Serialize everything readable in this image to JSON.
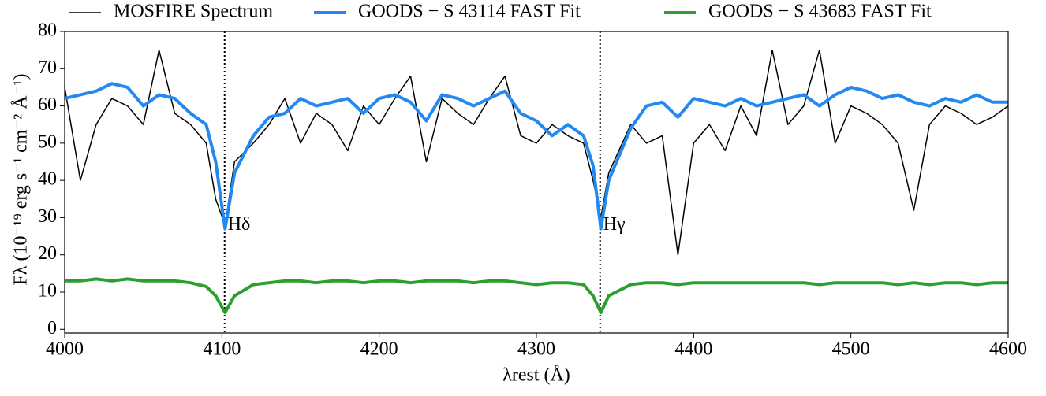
{
  "chart_data": {
    "type": "line",
    "xlabel": "λrest (Å)",
    "ylabel": "Fλ (10⁻¹⁹ erg s⁻¹ cm⁻² Å⁻¹)",
    "x": [
      4000,
      4010,
      4020,
      4030,
      4040,
      4050,
      4060,
      4070,
      4080,
      4090,
      4096,
      4102,
      4108,
      4120,
      4130,
      4140,
      4150,
      4160,
      4170,
      4180,
      4190,
      4200,
      4210,
      4220,
      4230,
      4240,
      4250,
      4260,
      4270,
      4280,
      4290,
      4300,
      4310,
      4320,
      4330,
      4336,
      4341,
      4346,
      4360,
      4370,
      4380,
      4390,
      4400,
      4410,
      4420,
      4430,
      4440,
      4450,
      4460,
      4470,
      4480,
      4490,
      4500,
      4510,
      4520,
      4530,
      4540,
      4550,
      4560,
      4570,
      4580,
      4590,
      4600
    ],
    "series": [
      {
        "name": "MOSFIRE Spectrum",
        "color": "#000000",
        "width": 1.5,
        "values": [
          65,
          40,
          55,
          62,
          60,
          55,
          75,
          58,
          55,
          50,
          35,
          28,
          45,
          50,
          55,
          62,
          50,
          58,
          55,
          48,
          60,
          55,
          62,
          68,
          45,
          62,
          58,
          55,
          62,
          68,
          52,
          50,
          55,
          52,
          50,
          40,
          30,
          42,
          55,
          50,
          52,
          20,
          50,
          55,
          48,
          60,
          52,
          75,
          55,
          60,
          75,
          50,
          60,
          58,
          55,
          50,
          32,
          55,
          60,
          58,
          55,
          57,
          60
        ]
      },
      {
        "name": "GOODS − S 43114 FAST Fit",
        "color": "#2389f0",
        "width": 4,
        "values": [
          62,
          63,
          64,
          66,
          65,
          60,
          63,
          62,
          58,
          55,
          45,
          27,
          42,
          52,
          57,
          58,
          62,
          60,
          61,
          62,
          58,
          62,
          63,
          61,
          56,
          63,
          62,
          60,
          62,
          64,
          58,
          56,
          52,
          55,
          52,
          44,
          27,
          40,
          54,
          60,
          61,
          57,
          62,
          61,
          60,
          62,
          60,
          61,
          62,
          63,
          60,
          63,
          65,
          64,
          62,
          63,
          61,
          60,
          62,
          61,
          63,
          61,
          61
        ]
      },
      {
        "name": "GOODS − S 43683 FAST Fit",
        "color": "#2ca02c",
        "width": 4,
        "values": [
          13,
          13,
          13.5,
          13,
          13.5,
          13,
          13,
          13,
          12.5,
          11.5,
          9,
          4.5,
          9,
          12,
          12.5,
          13,
          13,
          12.5,
          13,
          13,
          12.5,
          13,
          13,
          12.5,
          13,
          13,
          13,
          12.5,
          13,
          13,
          12.5,
          12,
          12.5,
          12.5,
          12,
          9,
          4.5,
          9,
          12,
          12.5,
          12.5,
          12,
          12.5,
          12.5,
          12.5,
          12.5,
          12.5,
          12.5,
          12.5,
          12.5,
          12,
          12.5,
          12.5,
          12.5,
          12.5,
          12,
          12.5,
          12,
          12.5,
          12.5,
          12,
          12.5,
          12.5
        ]
      }
    ],
    "annotations": [
      {
        "text": "Hδ",
        "x": 4101.7
      },
      {
        "text": "Hγ",
        "x": 4340.5
      }
    ],
    "xlim": [
      4000,
      4600
    ],
    "ylim": [
      -1,
      80
    ],
    "xticks": [
      4000,
      4100,
      4200,
      4300,
      4400,
      4500,
      4600
    ],
    "yticks": [
      0,
      10,
      20,
      30,
      40,
      50,
      60,
      70,
      80
    ]
  }
}
